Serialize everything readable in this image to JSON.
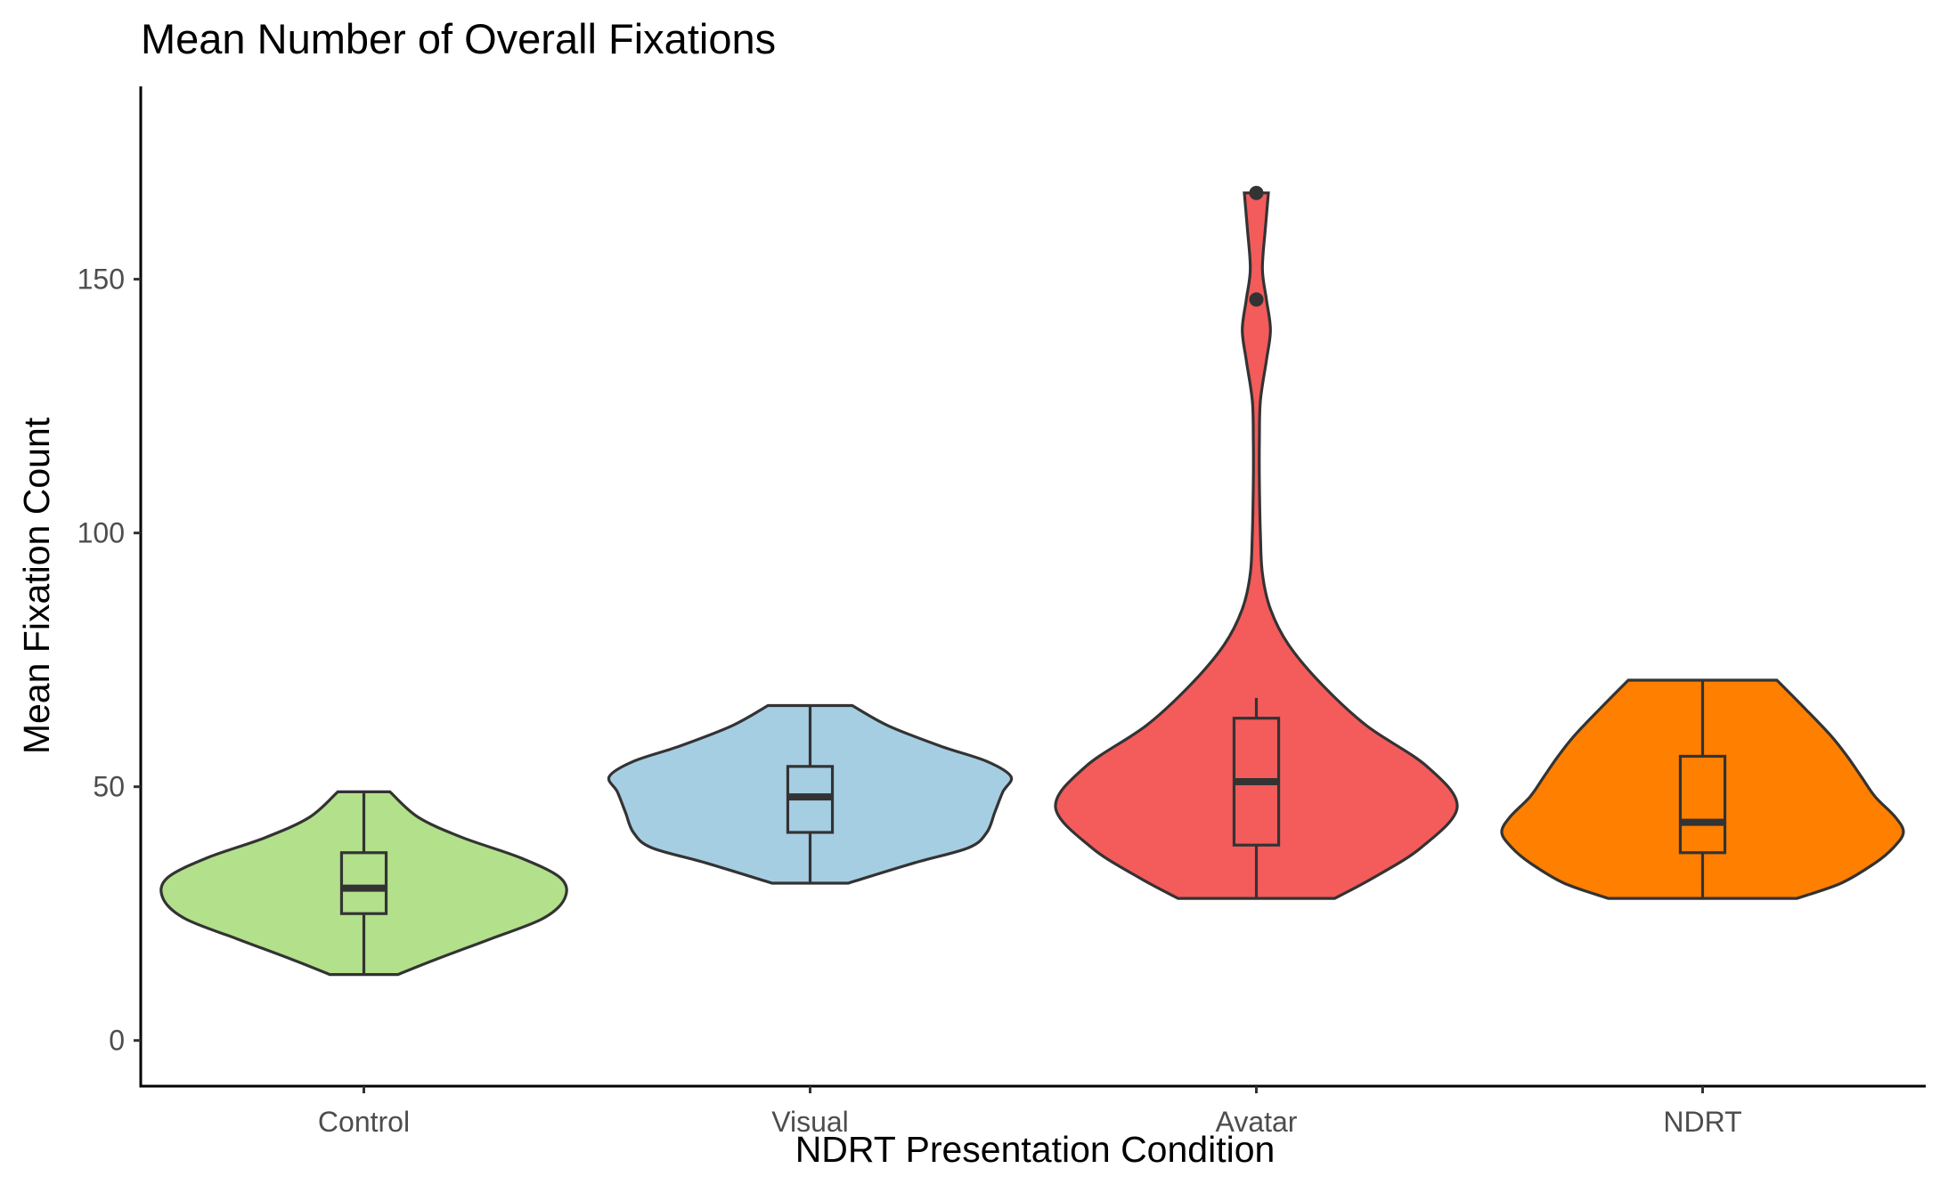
{
  "chart_data": {
    "type": "violin",
    "title": "Mean Number of Overall Fixations",
    "xlabel": "NDRT Presentation Condition",
    "ylabel": "Mean Fixation Count",
    "ylim": [
      -9,
      188
    ],
    "yticks": [
      0,
      50,
      100,
      150
    ],
    "grid": false,
    "legend": "none",
    "categories": [
      "Control",
      "Visual",
      "Avatar",
      "NDRT"
    ],
    "series": [
      {
        "category": "Control",
        "color": "#b3e08b",
        "min": 13,
        "q1": 25,
        "median": 30,
        "q3": 37,
        "max": 49,
        "outliers": [],
        "density": [
          [
            13,
            0.17
          ],
          [
            16,
            0.36
          ],
          [
            20,
            0.63
          ],
          [
            24,
            0.89
          ],
          [
            28,
            1.0
          ],
          [
            32,
            0.98
          ],
          [
            36,
            0.78
          ],
          [
            40,
            0.49
          ],
          [
            44,
            0.27
          ],
          [
            49,
            0.13
          ]
        ]
      },
      {
        "category": "Visual",
        "color": "#a6cee3",
        "min": 31,
        "q1": 41,
        "median": 48,
        "q3": 54,
        "max": 66,
        "outliers": [],
        "density": [
          [
            31,
            0.19
          ],
          [
            35,
            0.52
          ],
          [
            38,
            0.79
          ],
          [
            41,
            0.88
          ],
          [
            45,
            0.92
          ],
          [
            49,
            0.96
          ],
          [
            52,
            1.0
          ],
          [
            55,
            0.88
          ],
          [
            58,
            0.65
          ],
          [
            62,
            0.39
          ],
          [
            66,
            0.21
          ]
        ]
      },
      {
        "category": "Avatar",
        "color": "#f45b5b",
        "min": 28,
        "q1": 38.5,
        "median": 51,
        "q3": 63.5,
        "max": 67.5,
        "outliers": [
          146,
          167
        ],
        "density": [
          [
            28,
            0.39
          ],
          [
            32,
            0.58
          ],
          [
            38,
            0.82
          ],
          [
            46,
            1.0
          ],
          [
            54,
            0.85
          ],
          [
            62,
            0.55
          ],
          [
            70,
            0.33
          ],
          [
            78,
            0.16
          ],
          [
            85,
            0.07
          ],
          [
            92,
            0.03
          ],
          [
            100,
            0.02
          ],
          [
            110,
            0.015
          ],
          [
            118,
            0.015
          ],
          [
            126,
            0.02
          ],
          [
            134,
            0.05
          ],
          [
            140,
            0.07
          ],
          [
            146,
            0.05
          ],
          [
            152,
            0.03
          ],
          [
            160,
            0.045
          ],
          [
            167,
            0.06
          ]
        ]
      },
      {
        "category": "NDRT",
        "color": "#ff7f00",
        "min": 28,
        "q1": 37,
        "median": 43,
        "q3": 56,
        "max": 71,
        "outliers": [],
        "density": [
          [
            28,
            0.47
          ],
          [
            31,
            0.69
          ],
          [
            35,
            0.86
          ],
          [
            38,
            0.95
          ],
          [
            41,
            1.0
          ],
          [
            44,
            0.96
          ],
          [
            48,
            0.86
          ],
          [
            52,
            0.79
          ],
          [
            56,
            0.72
          ],
          [
            60,
            0.64
          ],
          [
            65,
            0.52
          ],
          [
            71,
            0.37
          ]
        ]
      }
    ]
  }
}
